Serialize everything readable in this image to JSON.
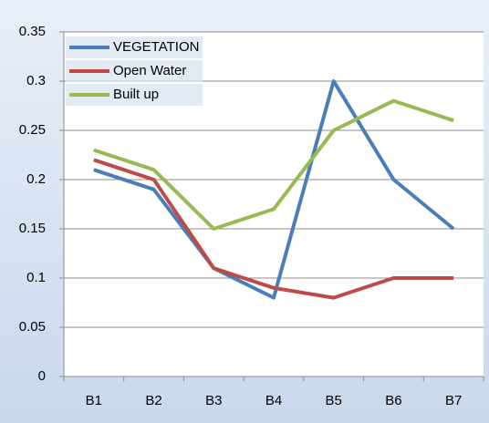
{
  "chart_data": {
    "type": "line",
    "categories": [
      "B1",
      "B2",
      "B3",
      "B4",
      "B5",
      "B6",
      "B7"
    ],
    "series": [
      {
        "name": "VEGETATION",
        "color": "#4a7ebb",
        "values": [
          0.21,
          0.19,
          0.11,
          0.08,
          0.3,
          0.2,
          0.15
        ]
      },
      {
        "name": "Open Water",
        "color": "#be4b48",
        "values": [
          0.22,
          0.2,
          0.11,
          0.09,
          0.08,
          0.1,
          0.1
        ]
      },
      {
        "name": "Built up",
        "color": "#98b954",
        "values": [
          0.23,
          0.21,
          0.15,
          0.17,
          0.25,
          0.28,
          0.26
        ]
      }
    ],
    "ylim": [
      0,
      0.35
    ],
    "yticks": [
      0,
      0.05,
      0.1,
      0.15,
      0.2,
      0.25,
      0.3,
      0.35
    ],
    "grid": true,
    "legend": "top-left"
  }
}
